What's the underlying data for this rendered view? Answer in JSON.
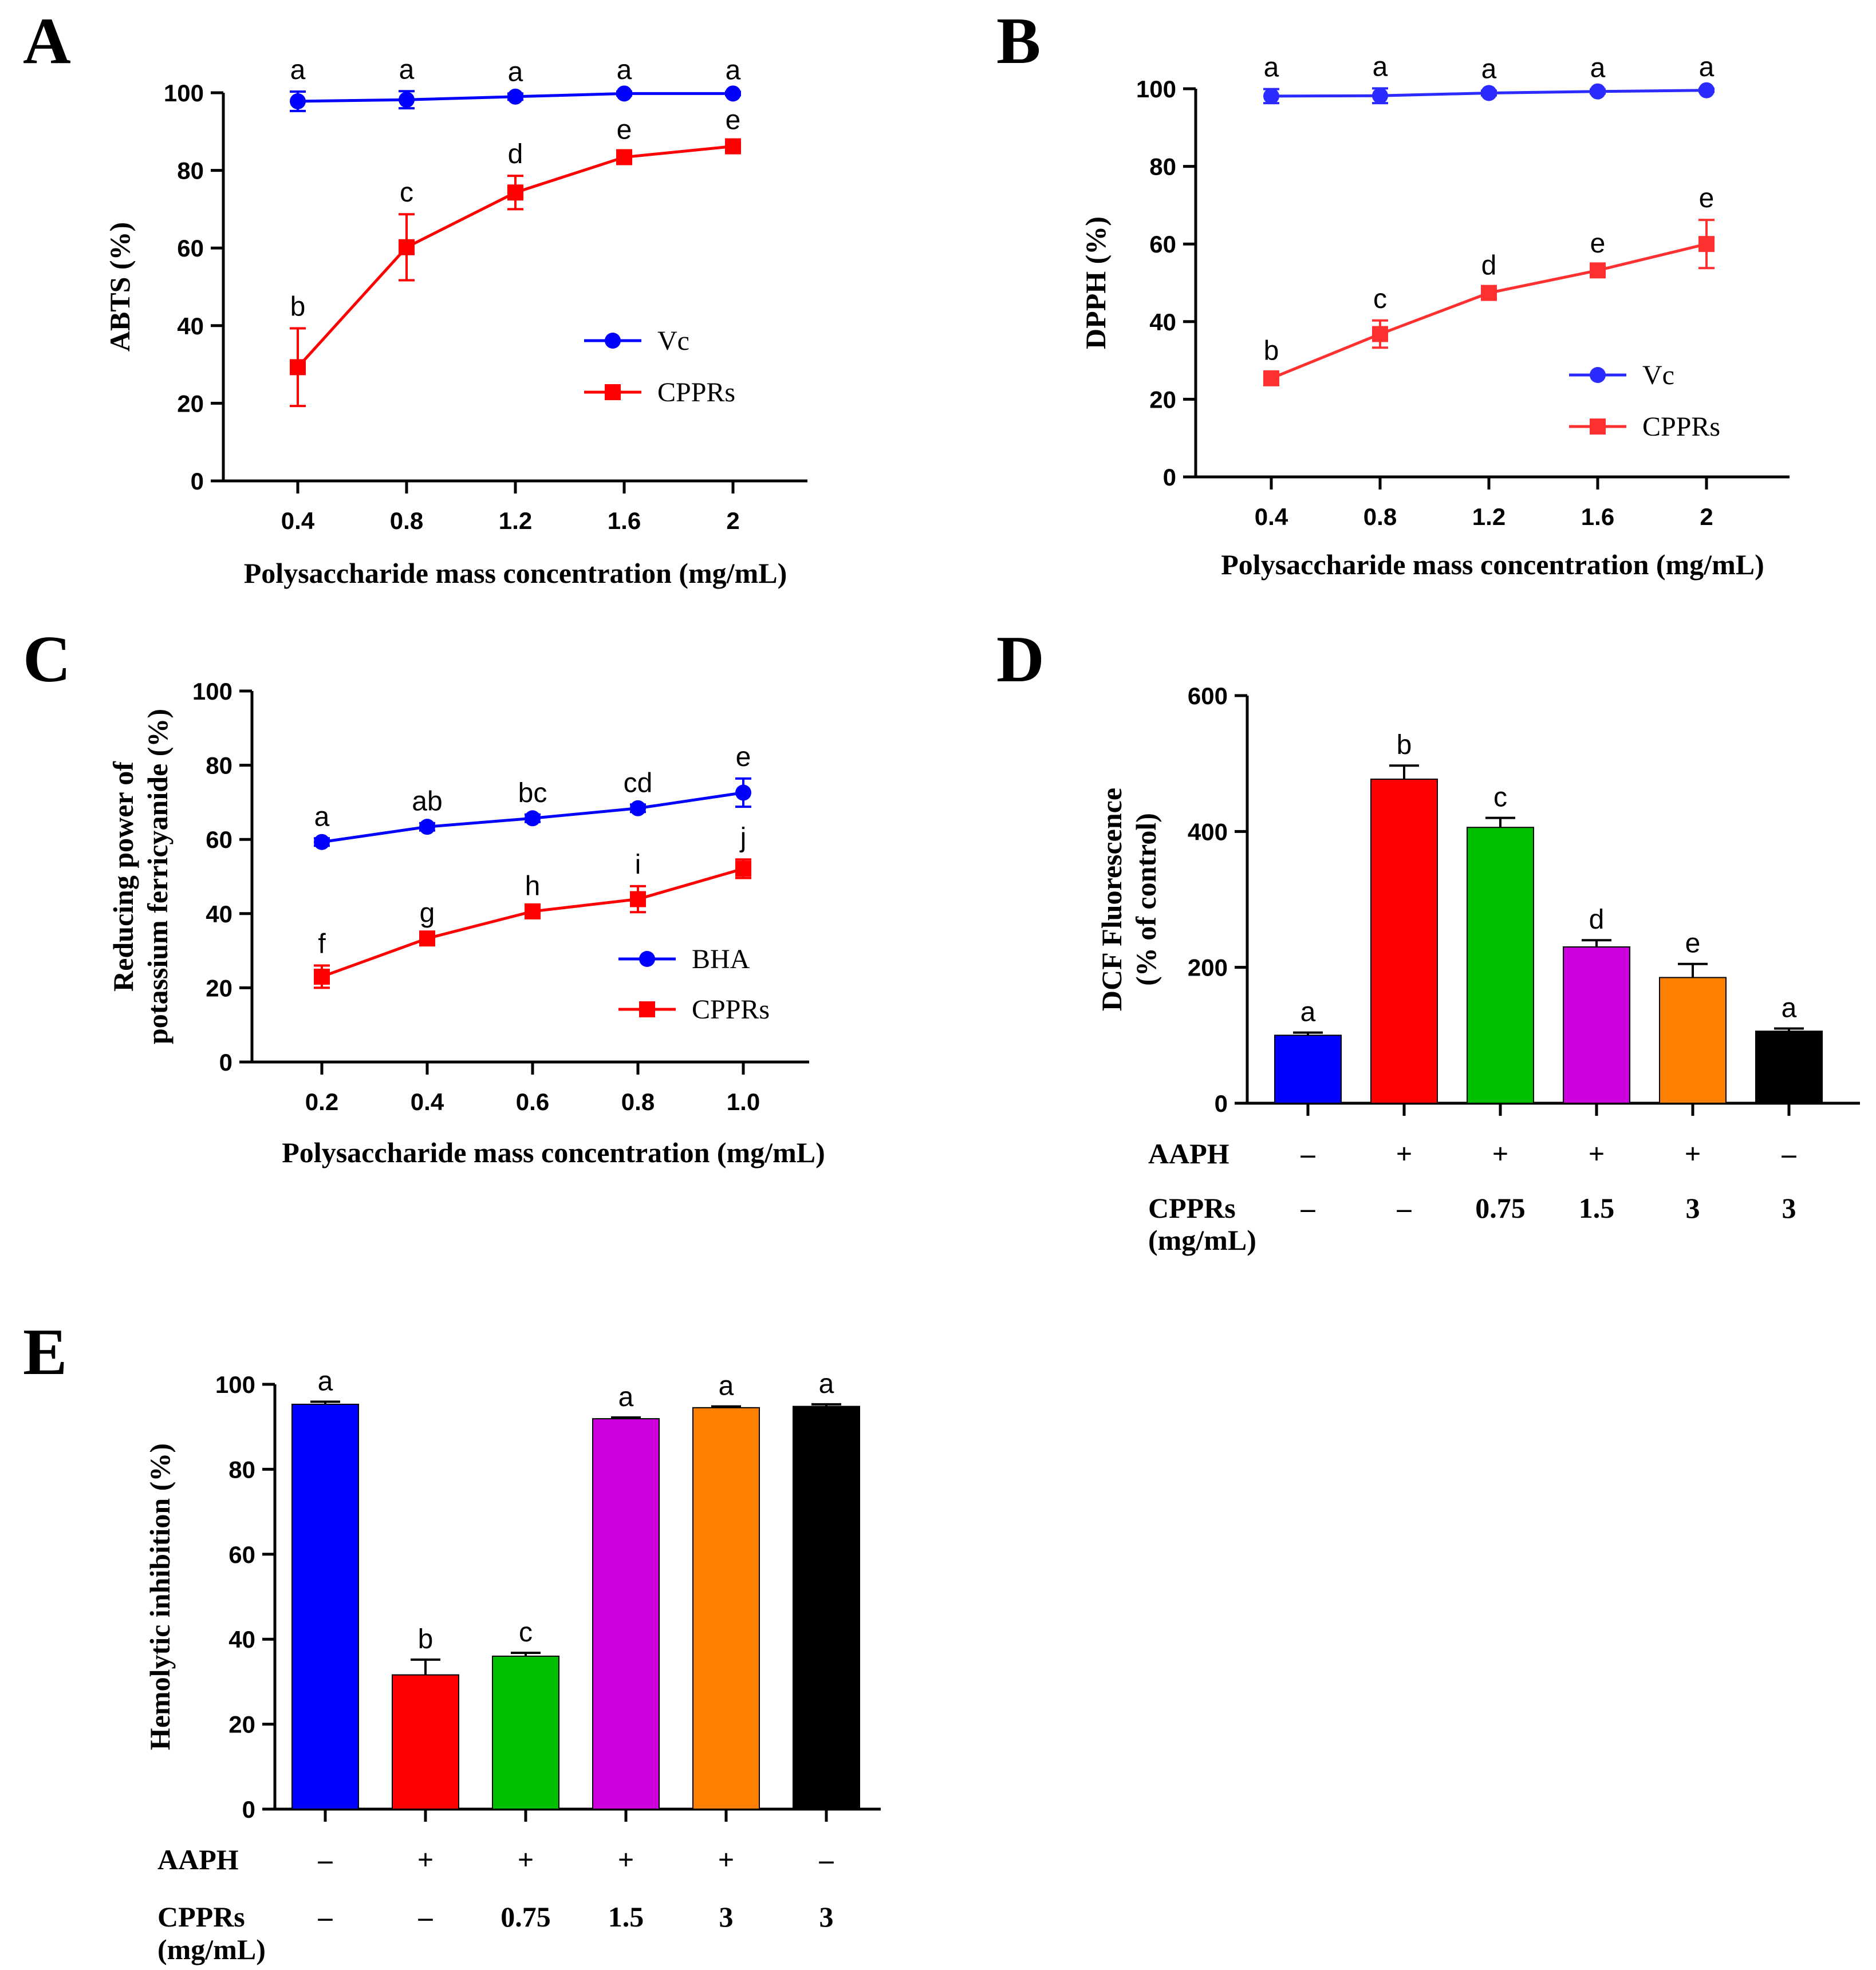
{
  "chart_data": [
    {
      "id": "A",
      "panel_label": "A",
      "type": "line",
      "xlabel": "Polysaccharide mass concentration (mg/mL)",
      "ylabel": "ABTS (%)",
      "categories": [
        "0.4",
        "0.8",
        "1.2",
        "1.6",
        "2"
      ],
      "ylim": [
        0,
        100
      ],
      "yticks": [
        "0",
        "20",
        "40",
        "60",
        "80",
        "100"
      ],
      "legend_position": "center-right",
      "series": [
        {
          "name": "Vc",
          "color": "#0000ff",
          "marker": "circle",
          "values": [
            97.8,
            98.2,
            99.0,
            99.8,
            99.8
          ],
          "errors": [
            2.5,
            2.2,
            0.8,
            0.5,
            0.4
          ],
          "letters": [
            "a",
            "a",
            "a",
            "a",
            "a"
          ]
        },
        {
          "name": "CPPRs",
          "color": "#ff0000",
          "marker": "square",
          "values": [
            29.3,
            60.2,
            74.3,
            83.4,
            86.2
          ],
          "errors": [
            10.0,
            8.5,
            4.3,
            1.5,
            1.2
          ],
          "letters": [
            "b",
            "c",
            "d",
            "e",
            "e"
          ]
        }
      ]
    },
    {
      "id": "B",
      "panel_label": "B",
      "type": "line",
      "xlabel": "Polysaccharide mass concentration (mg/mL)",
      "ylabel": "DPPH (%)",
      "categories": [
        "0.4",
        "0.8",
        "1.2",
        "1.6",
        "2"
      ],
      "ylim": [
        0,
        100
      ],
      "yticks": [
        "0",
        "20",
        "40",
        "60",
        "80",
        "100"
      ],
      "legend_position": "center-right",
      "series": [
        {
          "name": "Vc",
          "color": "#2b2bff",
          "marker": "circle",
          "values": [
            98.1,
            98.2,
            98.9,
            99.3,
            99.6
          ],
          "errors": [
            1.8,
            1.9,
            0.6,
            0.5,
            0.4
          ],
          "letters": [
            "a",
            "a",
            "a",
            "a",
            "a"
          ]
        },
        {
          "name": "CPPRs",
          "color": "#ff3030",
          "marker": "square",
          "values": [
            25.4,
            36.8,
            47.4,
            53.2,
            60.0
          ],
          "errors": [
            1.5,
            3.5,
            1.5,
            1.4,
            6.2
          ],
          "letters": [
            "b",
            "c",
            "d",
            "e",
            "e"
          ]
        }
      ]
    },
    {
      "id": "C",
      "panel_label": "C",
      "type": "line",
      "xlabel": "Polysaccharide mass concentration (mg/mL)",
      "ylabel_lines": [
        "Reducing power of",
        "potassium ferricyanide (%)"
      ],
      "categories": [
        "0.2",
        "0.4",
        "0.6",
        "0.8",
        "1.0"
      ],
      "ylim": [
        0,
        100
      ],
      "yticks": [
        "0",
        "20",
        "40",
        "60",
        "80",
        "100"
      ],
      "legend_position": "lower-right",
      "series": [
        {
          "name": "BHA",
          "color": "#0000ff",
          "marker": "circle",
          "values": [
            59.3,
            63.4,
            65.7,
            68.4,
            72.6
          ],
          "errors": [
            1.0,
            1.0,
            1.0,
            1.0,
            3.8
          ],
          "letters": [
            "a",
            "ab",
            "bc",
            "cd",
            "e"
          ]
        },
        {
          "name": "CPPRs",
          "color": "#ff0000",
          "marker": "square",
          "values": [
            23.0,
            33.3,
            40.6,
            43.9,
            52.1
          ],
          "errors": [
            3.0,
            1.0,
            1.0,
            3.5,
            2.5
          ],
          "letters": [
            "f",
            "g",
            "h",
            "i",
            "j"
          ]
        }
      ]
    },
    {
      "id": "D",
      "panel_label": "D",
      "type": "bar",
      "ylabel_lines": [
        "DCF Fluorescence",
        "(% of control)"
      ],
      "ylim": [
        0,
        600
      ],
      "yticks": [
        "0",
        "200",
        "400",
        "600"
      ],
      "values": [
        100,
        477,
        406,
        230,
        185,
        106
      ],
      "errors": [
        4,
        20,
        14,
        10,
        20,
        4
      ],
      "letters": [
        "a",
        "b",
        "c",
        "d",
        "e",
        "a"
      ],
      "colors": [
        "#0000ff",
        "#ff0000",
        "#00c000",
        "#cc00dd",
        "#ff8000",
        "#000000"
      ],
      "row_labels": {
        "aaph": "AAPH",
        "cpprs": "CPPRs",
        "cpprs_unit": "(mg/mL)"
      },
      "aaph": [
        "–",
        "+",
        "+",
        "+",
        "+",
        "–"
      ],
      "cpprs": [
        "–",
        "–",
        "0.75",
        "1.5",
        "3",
        "3"
      ]
    },
    {
      "id": "E",
      "panel_label": "E",
      "type": "bar",
      "ylabel": "Hemolytic inhibition (%)",
      "ylim": [
        0,
        100
      ],
      "yticks": [
        "0",
        "20",
        "40",
        "60",
        "80",
        "100"
      ],
      "values": [
        95.3,
        31.6,
        36.0,
        91.9,
        94.5,
        94.8
      ],
      "errors": [
        0.6,
        3.6,
        0.8,
        0.3,
        0.3,
        0.5
      ],
      "letters": [
        "a",
        "b",
        "c",
        "a",
        "a",
        "a"
      ],
      "colors": [
        "#0000ff",
        "#ff0000",
        "#00c000",
        "#cc00dd",
        "#ff8000",
        "#000000"
      ],
      "row_labels": {
        "aaph": "AAPH",
        "cpprs": "CPPRs",
        "cpprs_unit": "(mg/mL)"
      },
      "aaph": [
        "–",
        "+",
        "+",
        "+",
        "+",
        "–"
      ],
      "cpprs": [
        "–",
        "–",
        "0.75",
        "1.5",
        "3",
        "3"
      ]
    }
  ]
}
